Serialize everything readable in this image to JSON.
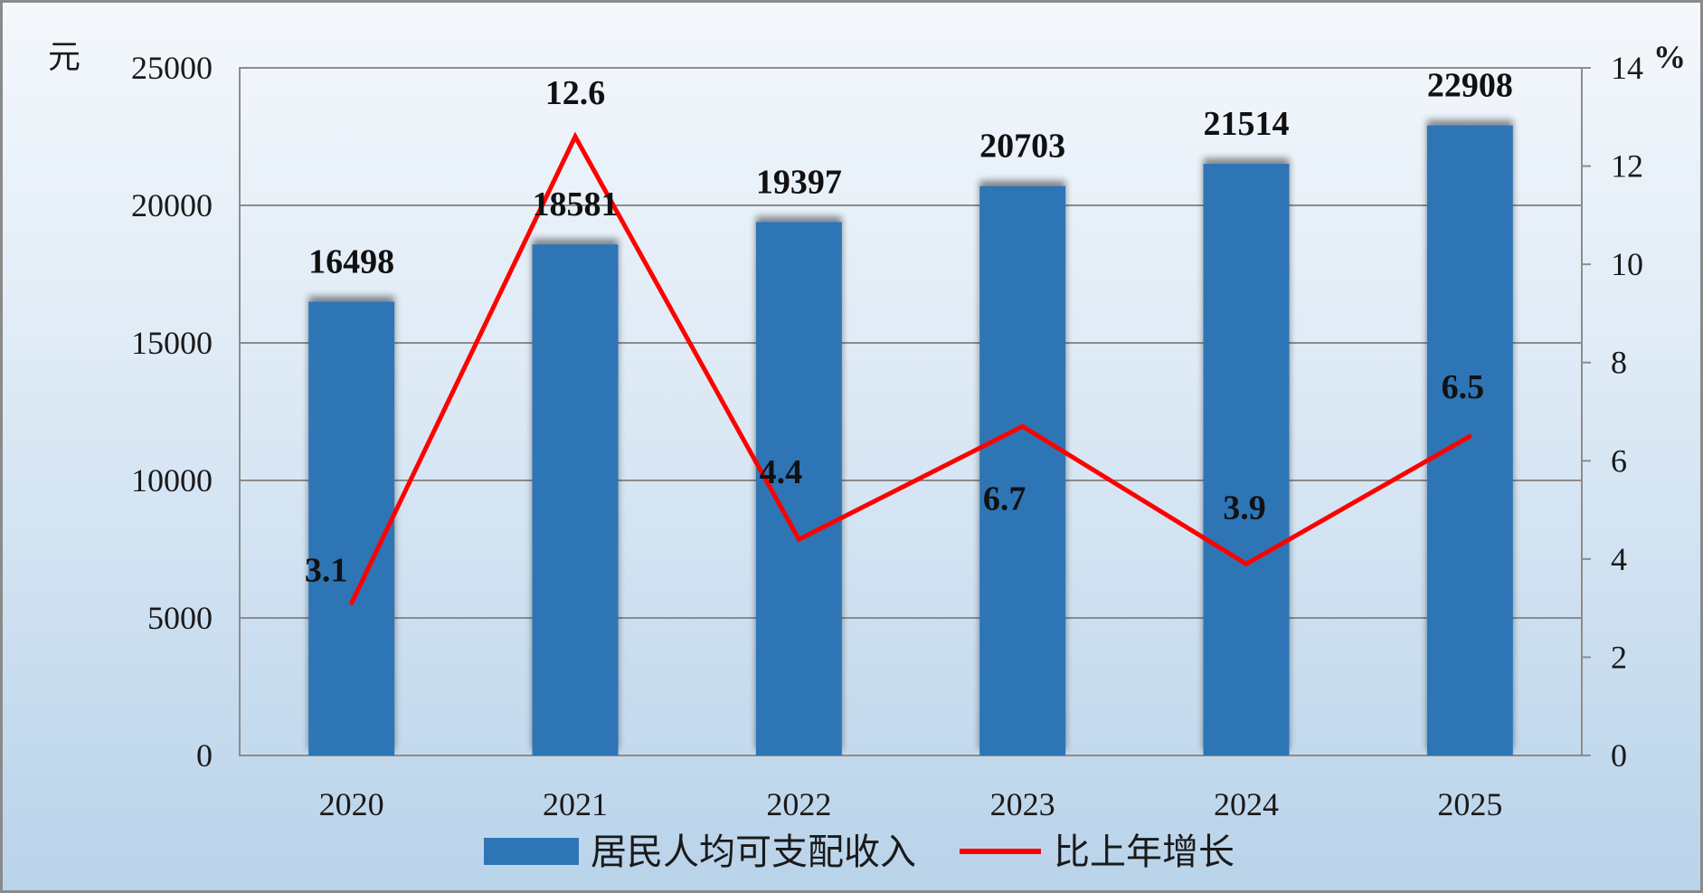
{
  "chart_data": {
    "type": "bar",
    "categories": [
      "2020",
      "2021",
      "2022",
      "2023",
      "2024",
      "2025"
    ],
    "series": [
      {
        "name": "居民人均可支配收入",
        "type": "bar",
        "axis": "left",
        "values": [
          16498,
          18581,
          19397,
          20703,
          21514,
          22908
        ],
        "labels": [
          "16498",
          "18581",
          "19397",
          "20703",
          "21514",
          "22908"
        ],
        "color": "#2e75b6"
      },
      {
        "name": "比上年增长",
        "type": "line",
        "axis": "right",
        "values": [
          3.1,
          12.6,
          4.4,
          6.7,
          3.9,
          6.5
        ],
        "labels": [
          "3.1",
          "12.6",
          "4.4",
          "6.7",
          "3.9",
          "6.5"
        ],
        "color": "#ff0000"
      }
    ],
    "y_left": {
      "unit": "元",
      "ylim": [
        0,
        25000
      ],
      "ticks": [
        "0",
        "5000",
        "10000",
        "15000",
        "20000",
        "25000"
      ]
    },
    "y_right": {
      "unit": "%",
      "ylim": [
        0,
        14
      ],
      "ticks": [
        "0",
        "2",
        "4",
        "6",
        "8",
        "10",
        "12",
        "14"
      ]
    },
    "grid": true,
    "legend_position": "bottom"
  }
}
